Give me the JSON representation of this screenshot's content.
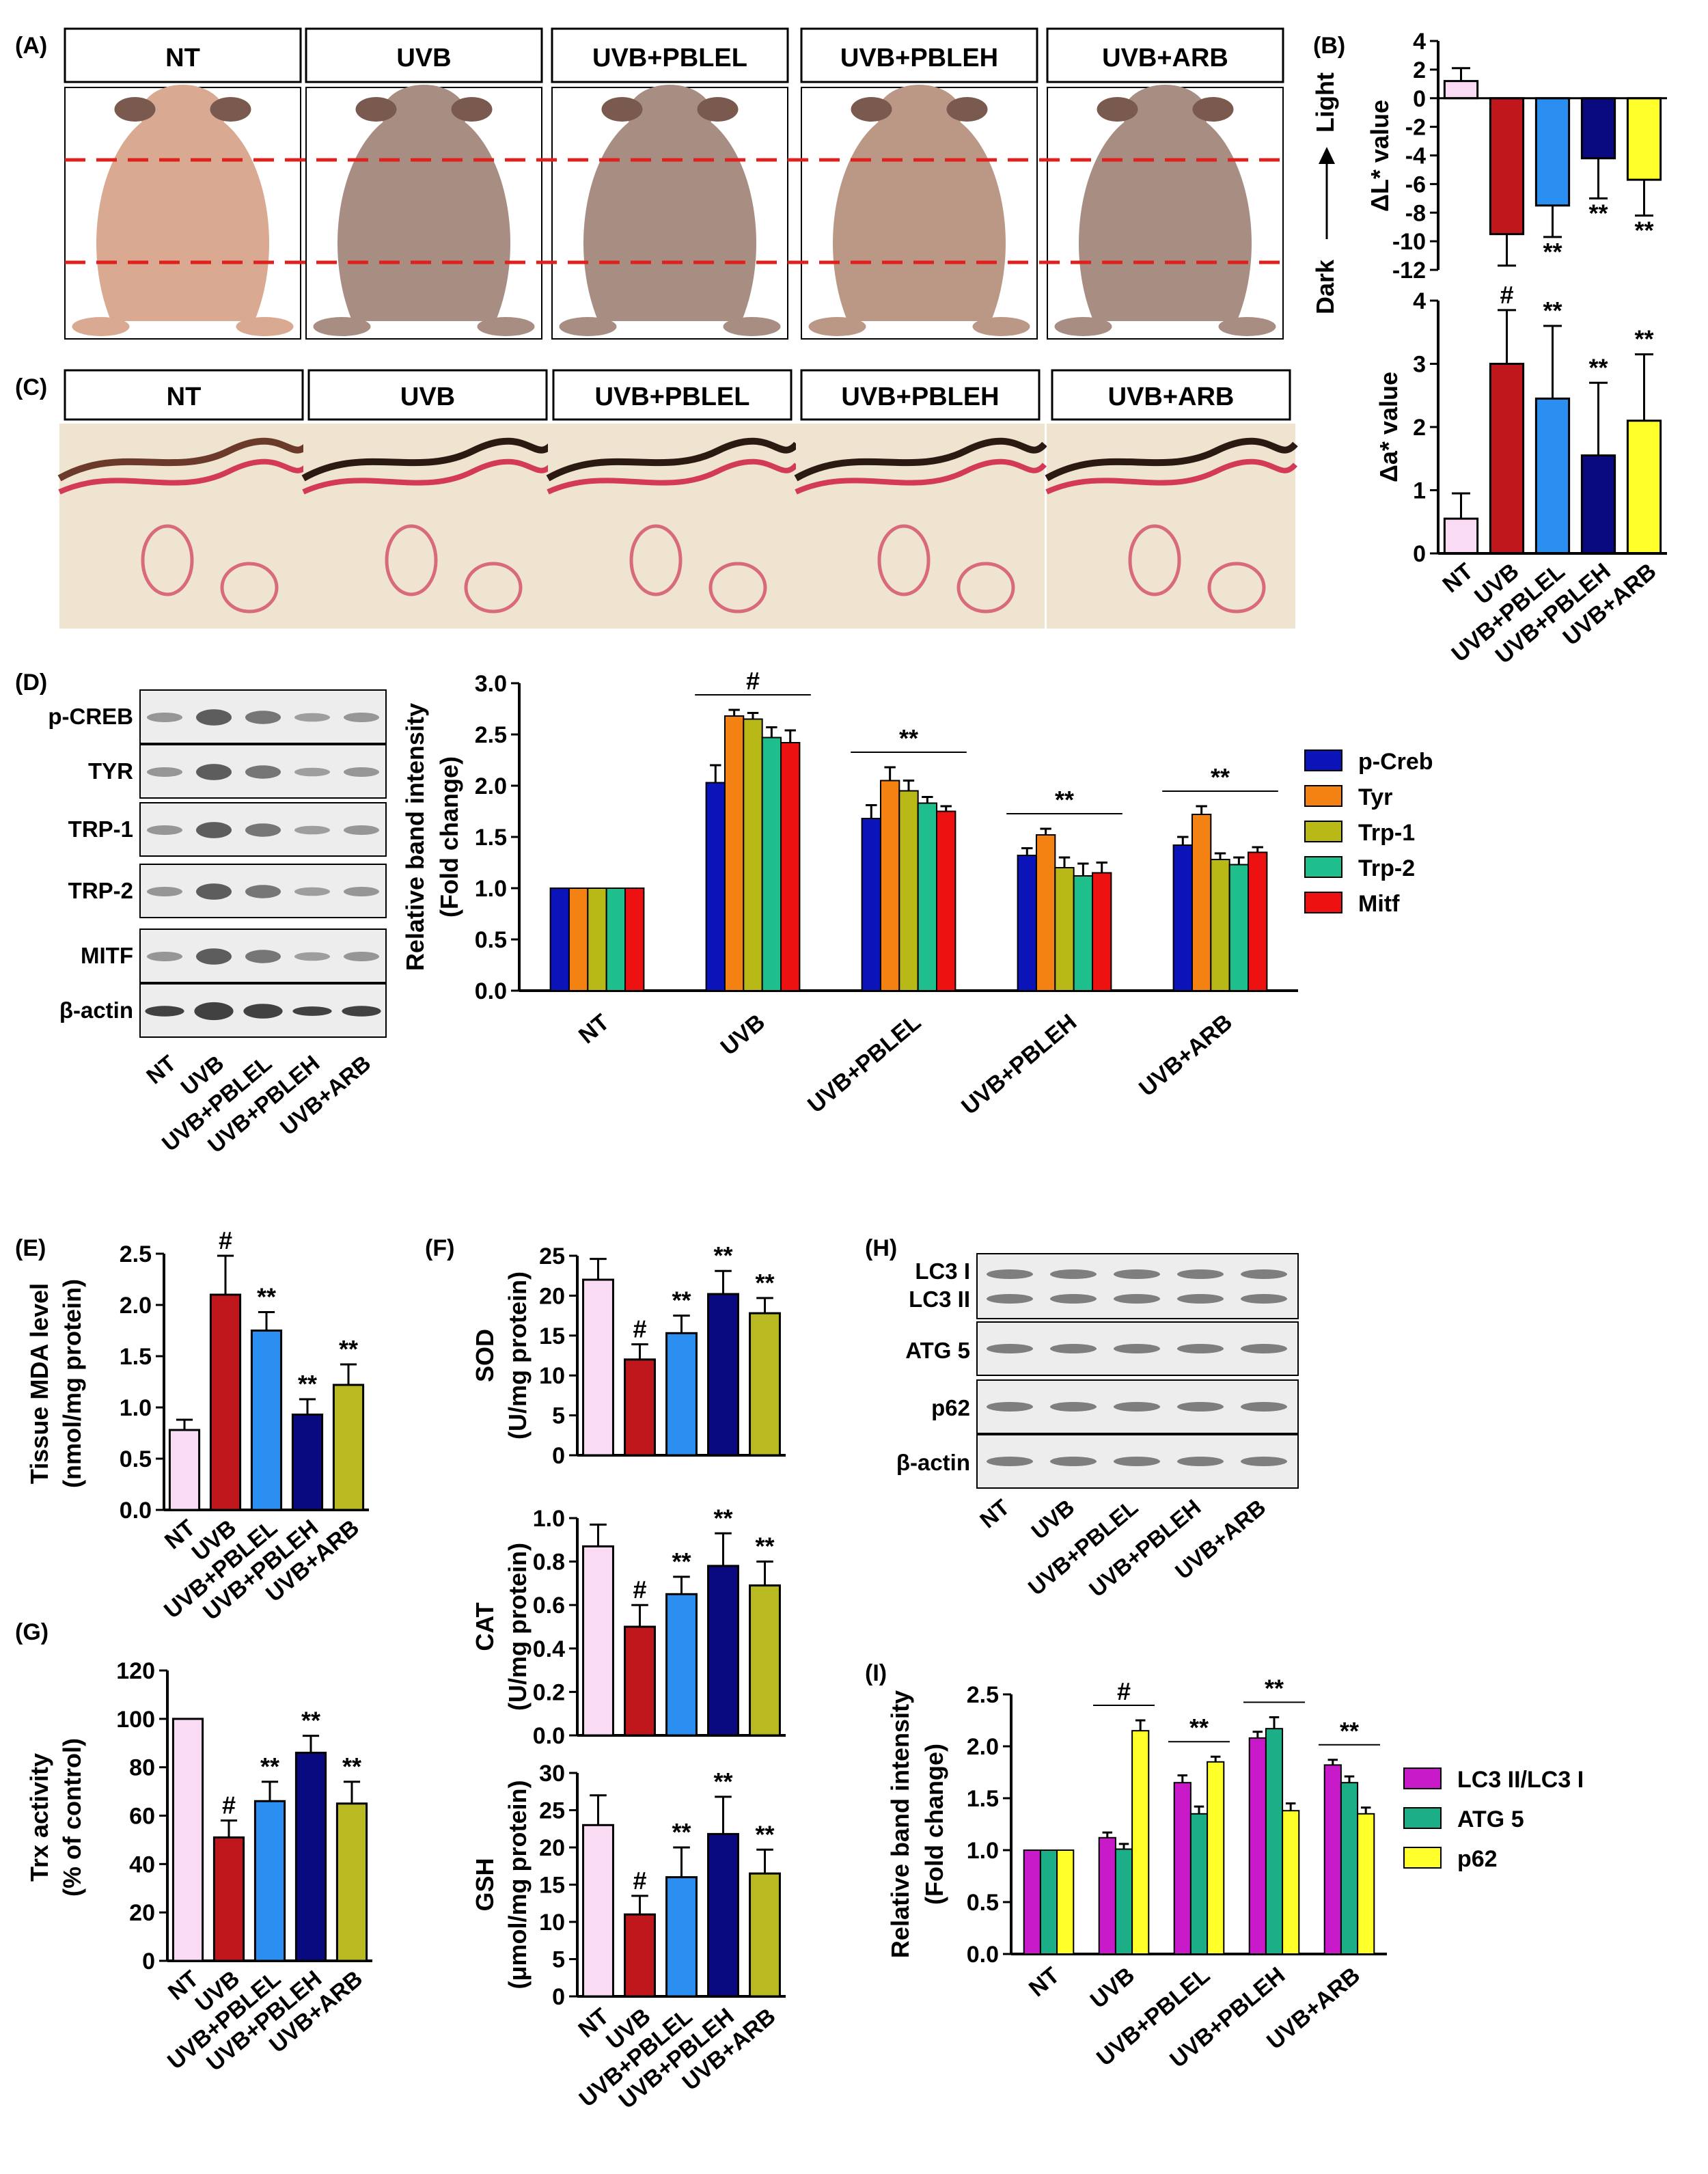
{
  "figure": {
    "panel_labels": [
      "(A)",
      "(B)",
      "(C)",
      "(D)",
      "(E)",
      "(F)",
      "(G)",
      "(H)",
      "(I)"
    ],
    "groups": [
      "NT",
      "UVB",
      "UVB+PBLEL",
      "UVB+PBLEH",
      "UVB+ARB"
    ],
    "photo_a_headers": [
      "NT",
      "UVB",
      "UVB+PBLEL",
      "UVB+PBLEH",
      "UVB+ARB"
    ],
    "photo_c_headers": [
      "NT",
      "UVB",
      "UVB+PBLEL",
      "UVB+PBLEH",
      "UVB+ARB"
    ],
    "b_side_label": {
      "dark": "Dark",
      "light": "Light"
    },
    "blot_d_labels": [
      "p-CREB",
      "TYR",
      "TRP-1",
      "TRP-2",
      "MITF",
      "β-actin"
    ],
    "blot_h_labels": [
      "LC3 I",
      "LC3 II",
      "ATG 5",
      "p62",
      "β-actin"
    ],
    "colors": {
      "nt": "#f9dcf3",
      "uvb": "#c0171c",
      "pblel": "#2b8ff2",
      "pbleh": "#0a0a80",
      "arb_b": "#ffff2a",
      "arb_e": "#b9b921",
      "pcreb": "#0b14b8",
      "tyr": "#f48212",
      "trp1": "#b8b817",
      "trp2": "#1ebf8c",
      "mitf": "#ee1111",
      "lc3": "#c81ac8",
      "atg5": "#1cae86",
      "p62": "#ffff2a"
    }
  },
  "chart_data": [
    {
      "id": "B_top",
      "type": "bar",
      "categories": [
        "NT",
        "UVB",
        "UVB+PBLEL",
        "UVB+PBLEH",
        "UVB+ARB"
      ],
      "values": [
        1.2,
        -9.5,
        -7.5,
        -4.2,
        -5.7
      ],
      "errors": [
        0.9,
        2.2,
        2.2,
        2.8,
        2.5
      ],
      "ylabel": "ΔL* value",
      "ylim": [
        -12,
        4
      ],
      "yticks": [
        "4",
        "2",
        "0",
        "-2",
        "-4",
        "-6",
        "-8",
        "-10",
        "-12"
      ],
      "sig": [
        "",
        "",
        "**",
        "**",
        "**"
      ]
    },
    {
      "id": "B_bottom",
      "type": "bar",
      "categories": [
        "NT",
        "UVB",
        "UVB+PBLEL",
        "UVB+PBLEH",
        "UVB+ARB"
      ],
      "values": [
        0.55,
        3.0,
        2.45,
        1.55,
        2.1
      ],
      "errors": [
        0.4,
        0.85,
        1.15,
        1.15,
        1.05
      ],
      "ylabel": "Δa* value",
      "ylim": [
        0,
        4
      ],
      "yticks": [
        "0",
        "1",
        "2",
        "3",
        "4"
      ],
      "sig": [
        "",
        "#",
        "**",
        "**",
        "**"
      ]
    },
    {
      "id": "D",
      "type": "bar",
      "categories": [
        "NT",
        "UVB",
        "UVB+PBLEL",
        "UVB+PBLEH",
        "UVB+ARB"
      ],
      "series": [
        {
          "name": "p-Creb",
          "values": [
            1.0,
            2.03,
            1.68,
            1.32,
            1.42
          ],
          "errors": [
            0,
            0.17,
            0.13,
            0.07,
            0.08
          ]
        },
        {
          "name": "Tyr",
          "values": [
            1.0,
            2.68,
            2.05,
            1.52,
            1.72
          ],
          "errors": [
            0,
            0.06,
            0.13,
            0.06,
            0.08
          ]
        },
        {
          "name": "Trp-1",
          "values": [
            1.0,
            2.65,
            1.95,
            1.2,
            1.28
          ],
          "errors": [
            0,
            0.06,
            0.1,
            0.1,
            0.06
          ]
        },
        {
          "name": "Trp-2",
          "values": [
            1.0,
            2.47,
            1.83,
            1.12,
            1.23
          ],
          "errors": [
            0,
            0.1,
            0.06,
            0.12,
            0.07
          ]
        },
        {
          "name": "Mitf",
          "values": [
            1.0,
            2.42,
            1.75,
            1.15,
            1.35
          ],
          "errors": [
            0,
            0.12,
            0.05,
            0.1,
            0.05
          ]
        }
      ],
      "ylabel": "Relative band intensity",
      "ylabel2": "(Fold change)",
      "ylim": [
        0,
        3.0
      ],
      "yticks": [
        "0.0",
        "0.5",
        "1.0",
        "1.5",
        "2.0",
        "2.5",
        "3.0"
      ],
      "group_sig": [
        "",
        "#",
        "**",
        "**",
        "**"
      ]
    },
    {
      "id": "E",
      "type": "bar",
      "categories": [
        "NT",
        "UVB",
        "UVB+PBLEL",
        "UVB+PBLEH",
        "UVB+ARB"
      ],
      "values": [
        0.78,
        2.1,
        1.75,
        0.93,
        1.22
      ],
      "errors": [
        0.1,
        0.38,
        0.18,
        0.15,
        0.2
      ],
      "ylabel": "Tissue MDA level",
      "ylabel2": "(nmol/mg protein)",
      "ylim": [
        0,
        2.5
      ],
      "yticks": [
        "0.0",
        "0.5",
        "1.0",
        "1.5",
        "2.0",
        "2.5"
      ],
      "sig": [
        "",
        "#",
        "**",
        "**",
        "**"
      ]
    },
    {
      "id": "F_SOD",
      "type": "bar",
      "categories": [
        "NT",
        "UVB",
        "UVB+PBLEL",
        "UVB+PBLEH",
        "UVB+ARB"
      ],
      "values": [
        22,
        12,
        15.3,
        20.2,
        17.8
      ],
      "errors": [
        2.6,
        1.9,
        2.2,
        2.9,
        1.9
      ],
      "ylabel": "SOD",
      "ylabel2": "(U/mg protein)",
      "ylim": [
        0,
        25
      ],
      "yticks": [
        "0",
        "5",
        "10",
        "15",
        "20",
        "25"
      ],
      "sig": [
        "",
        "#",
        "**",
        "**",
        "**"
      ]
    },
    {
      "id": "F_CAT",
      "type": "bar",
      "categories": [
        "NT",
        "UVB",
        "UVB+PBLEL",
        "UVB+PBLEH",
        "UVB+ARB"
      ],
      "values": [
        0.87,
        0.5,
        0.65,
        0.78,
        0.69
      ],
      "errors": [
        0.1,
        0.1,
        0.08,
        0.15,
        0.11
      ],
      "ylabel": "CAT",
      "ylabel2": "(U/mg protein)",
      "ylim": [
        0,
        1.0
      ],
      "yticks": [
        "0.0",
        "0.2",
        "0.4",
        "0.6",
        "0.8",
        "1.0"
      ],
      "sig": [
        "",
        "#",
        "**",
        "**",
        "**"
      ]
    },
    {
      "id": "F_GSH",
      "type": "bar",
      "categories": [
        "NT",
        "UVB",
        "UVB+PBLEL",
        "UVB+PBLEH",
        "UVB+ARB"
      ],
      "values": [
        23,
        11,
        16,
        21.8,
        16.5
      ],
      "errors": [
        4,
        2.5,
        4,
        5,
        3.2
      ],
      "ylabel": "GSH",
      "ylabel2": "(μmol/mg protein)",
      "ylim": [
        0,
        30
      ],
      "yticks": [
        "0",
        "5",
        "10",
        "15",
        "20",
        "25",
        "30"
      ],
      "sig": [
        "",
        "#",
        "**",
        "**",
        "**"
      ]
    },
    {
      "id": "G",
      "type": "bar",
      "categories": [
        "NT",
        "UVB",
        "UVB+PBLEL",
        "UVB+PBLEH",
        "UVB+ARB"
      ],
      "values": [
        100,
        51,
        66,
        86,
        65
      ],
      "errors": [
        0,
        7,
        8,
        7,
        9
      ],
      "ylabel": "Trx activity",
      "ylabel2": "(% of control)",
      "ylim": [
        0,
        120
      ],
      "yticks": [
        "0",
        "20",
        "40",
        "60",
        "80",
        "100",
        "120"
      ],
      "sig": [
        "",
        "#",
        "**",
        "**",
        "**"
      ]
    },
    {
      "id": "I",
      "type": "bar",
      "categories": [
        "NT",
        "UVB",
        "UVB+PBLEL",
        "UVB+PBLEH",
        "UVB+ARB"
      ],
      "series": [
        {
          "name": "LC3 II/LC3 I",
          "values": [
            1.0,
            1.12,
            1.65,
            2.08,
            1.82
          ],
          "errors": [
            0,
            0.05,
            0.07,
            0.06,
            0.05
          ]
        },
        {
          "name": "ATG 5",
          "values": [
            1.0,
            1.01,
            1.35,
            2.17,
            1.65
          ],
          "errors": [
            0,
            0.05,
            0.07,
            0.11,
            0.06
          ]
        },
        {
          "name": "p62",
          "values": [
            1.0,
            2.15,
            1.85,
            1.38,
            1.35
          ],
          "errors": [
            0,
            0.1,
            0.05,
            0.07,
            0.06
          ]
        }
      ],
      "ylabel": "Relative band intensity",
      "ylabel2": "(Fold change)",
      "ylim": [
        0,
        2.5
      ],
      "yticks": [
        "0.0",
        "0.5",
        "1.0",
        "1.5",
        "2.0",
        "2.5"
      ],
      "group_sig": [
        "",
        "#",
        "**",
        "**",
        "**"
      ]
    }
  ]
}
